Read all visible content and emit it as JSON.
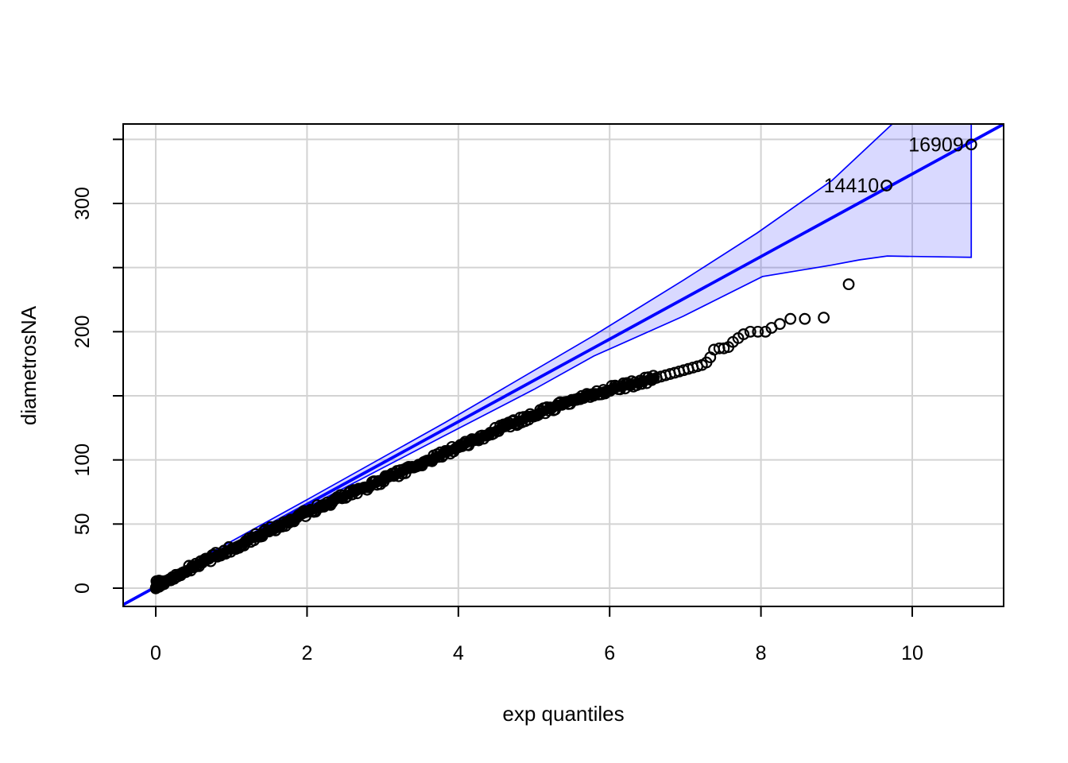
{
  "chart_data": {
    "type": "scatter",
    "subtype": "exponential-qq-plot",
    "title": "",
    "xlabel": "exp quantiles",
    "ylabel": "diametrosNA",
    "xlim": [
      -0.43,
      11.21
    ],
    "ylim": [
      -14.5,
      362
    ],
    "x_ticks": [
      0,
      2,
      4,
      6,
      8,
      10
    ],
    "x_tick_labels": [
      "0",
      "2",
      "4",
      "6",
      "8",
      "10"
    ],
    "y_ticks": [
      0,
      50,
      100,
      150,
      200,
      250,
      300,
      350
    ],
    "y_tick_labels": [
      "0",
      "50",
      "100",
      "",
      "200",
      "",
      "300",
      ""
    ],
    "grid": {
      "show": true,
      "color": "#D3D3D3"
    },
    "colors": {
      "points": "#000000",
      "line": "#0000FF",
      "envelope_fill": "rgba(0,0,255,0.15)",
      "envelope_border": "#0000FF",
      "axis": "#000000",
      "background": "#FFFFFF"
    },
    "reference_line": {
      "slope": 32.2,
      "intercept": 1
    },
    "envelope": {
      "upper": [
        [
          0,
          4
        ],
        [
          2,
          69
        ],
        [
          3.82,
          129
        ],
        [
          5.79,
          197
        ],
        [
          6.97,
          240
        ],
        [
          7.95,
          277
        ],
        [
          8.94,
          318
        ],
        [
          9.7,
          360
        ],
        [
          10.3,
          393
        ],
        [
          10.78,
          430
        ]
      ],
      "lower": [
        [
          0,
          -1.5
        ],
        [
          2,
          63
        ],
        [
          3.82,
          119
        ],
        [
          5,
          155
        ],
        [
          5.79,
          181
        ],
        [
          6.97,
          212
        ],
        [
          8.02,
          243
        ],
        [
          8.94,
          252
        ],
        [
          9.3,
          256
        ],
        [
          9.67,
          259
        ],
        [
          10.2,
          258.5
        ],
        [
          10.78,
          258
        ]
      ],
      "right_edge_q": 10.78
    },
    "sample_curve": {
      "description": "dense band of overlapping open-circle points (empirical quantiles)",
      "q_range": [
        0,
        6.6
      ],
      "anchors": [
        [
          0,
          1
        ],
        [
          0.5,
          17
        ],
        [
          1,
          31
        ],
        [
          1.5,
          45
        ],
        [
          2,
          59
        ],
        [
          2.5,
          72
        ],
        [
          3,
          84
        ],
        [
          3.5,
          97
        ],
        [
          4,
          110
        ],
        [
          4.5,
          123
        ],
        [
          5,
          135
        ],
        [
          5.25,
          141
        ],
        [
          5.5,
          146
        ],
        [
          6,
          155
        ],
        [
          6.3,
          159
        ],
        [
          6.6,
          164
        ]
      ]
    },
    "tail_points": [
      [
        6.55,
        163
      ],
      [
        6.62,
        164
      ],
      [
        6.68,
        165
      ],
      [
        6.74,
        166
      ],
      [
        6.8,
        167
      ],
      [
        6.86,
        168
      ],
      [
        6.92,
        169
      ],
      [
        6.98,
        170
      ],
      [
        7.04,
        171
      ],
      [
        7.1,
        172
      ],
      [
        7.16,
        173
      ],
      [
        7.22,
        174
      ],
      [
        7.28,
        176
      ],
      [
        7.33,
        180
      ],
      [
        7.38,
        186
      ],
      [
        7.45,
        187
      ],
      [
        7.51,
        187
      ],
      [
        7.57,
        188
      ],
      [
        7.63,
        192
      ],
      [
        7.7,
        195
      ],
      [
        7.77,
        198
      ],
      [
        7.86,
        200
      ],
      [
        7.96,
        200
      ],
      [
        8.06,
        200
      ],
      [
        8.14,
        203
      ],
      [
        8.25,
        206
      ],
      [
        8.39,
        210
      ],
      [
        8.58,
        210
      ],
      [
        8.83,
        211
      ],
      [
        9.16,
        237
      ]
    ],
    "labeled_outliers": [
      {
        "label": "14410",
        "q": 9.66,
        "v": 314
      },
      {
        "label": "16909",
        "q": 10.78,
        "v": 346
      }
    ]
  }
}
